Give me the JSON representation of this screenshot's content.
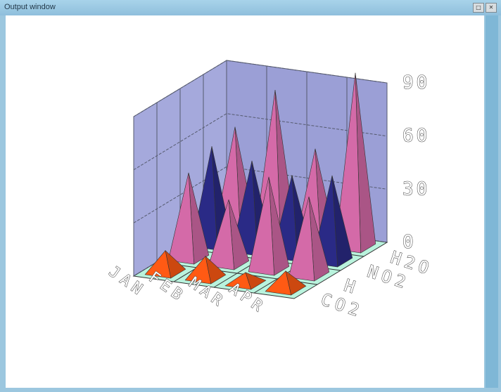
{
  "window": {
    "title": "Output window",
    "buttons": [
      "min-max",
      "close"
    ]
  },
  "colors": {
    "back_wall": "#9b9fd6",
    "side_wall": "#a5a9dc",
    "floor": "#b9f3dd",
    "grid": "#555a6e",
    "pink": "#d46aa8",
    "navy": "#2a2a86",
    "orange": "#ff5a14"
  },
  "chart_data": {
    "type": "bar",
    "style": "3d-pyramid",
    "categories": [
      "JAN",
      "FEB",
      "MAR",
      "APR"
    ],
    "series_labels": [
      "CO2",
      "H",
      "NO2",
      "H2O"
    ],
    "zlim": [
      0,
      90
    ],
    "ticks": [
      "0",
      "30",
      "60",
      "90"
    ],
    "values": [
      [
        12,
        12,
        6,
        10
      ],
      [
        48,
        36,
        52,
        44
      ],
      [
        55,
        50,
        45,
        48
      ],
      [
        58,
        82,
        52,
        98
      ]
    ],
    "grid": true
  }
}
